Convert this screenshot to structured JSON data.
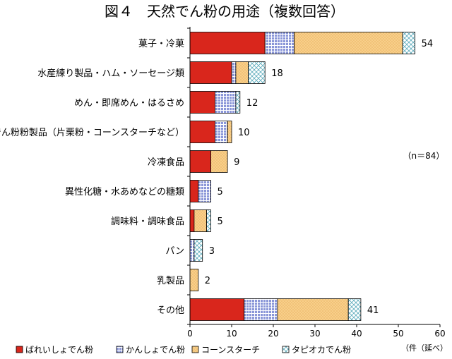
{
  "chart_data": {
    "type": "bar",
    "orientation": "horizontal",
    "stacked": true,
    "title": "図４　天然でん粉の用途（複数回答）",
    "note": "（n＝84）",
    "x_unit": "（件（延べ）",
    "xlim": [
      0,
      60
    ],
    "x_ticks": [
      0,
      10,
      20,
      30,
      40,
      50,
      60
    ],
    "categories": [
      "菓子・冷菓",
      "水産練り製品・ハム・ソーセージ類",
      "めん・即席めん・はるさめ",
      "でん粉粉製品（片栗粉・コーンスターチなど）",
      "冷凍食品",
      "異性化糖・水あめなどの糖類",
      "調味料・調味食品",
      "パン",
      "乳製品",
      "その他"
    ],
    "totals": [
      54,
      18,
      12,
      10,
      9,
      5,
      5,
      3,
      2,
      41
    ],
    "series": [
      {
        "name": "ばれいしょでん粉",
        "color": "#d9261c",
        "pattern": "solid",
        "values": [
          18,
          10,
          6,
          6,
          5,
          2,
          1,
          0,
          0,
          13
        ]
      },
      {
        "name": "かんしょでん粉",
        "color": "#8a96d8",
        "pattern": "grid",
        "values": [
          7,
          1,
          5,
          3,
          0,
          3,
          0,
          1,
          0,
          8
        ]
      },
      {
        "name": "コーンスターチ",
        "color": "#f8cf8a",
        "pattern": "dots",
        "values": [
          26,
          3,
          0,
          1,
          4,
          0,
          3,
          0,
          2,
          17
        ]
      },
      {
        "name": "タピオカでん粉",
        "color": "#d8eef2",
        "pattern": "diamond",
        "values": [
          3,
          4,
          1,
          0,
          0,
          0,
          1,
          2,
          0,
          3
        ]
      }
    ],
    "legend_position": "bottom"
  }
}
